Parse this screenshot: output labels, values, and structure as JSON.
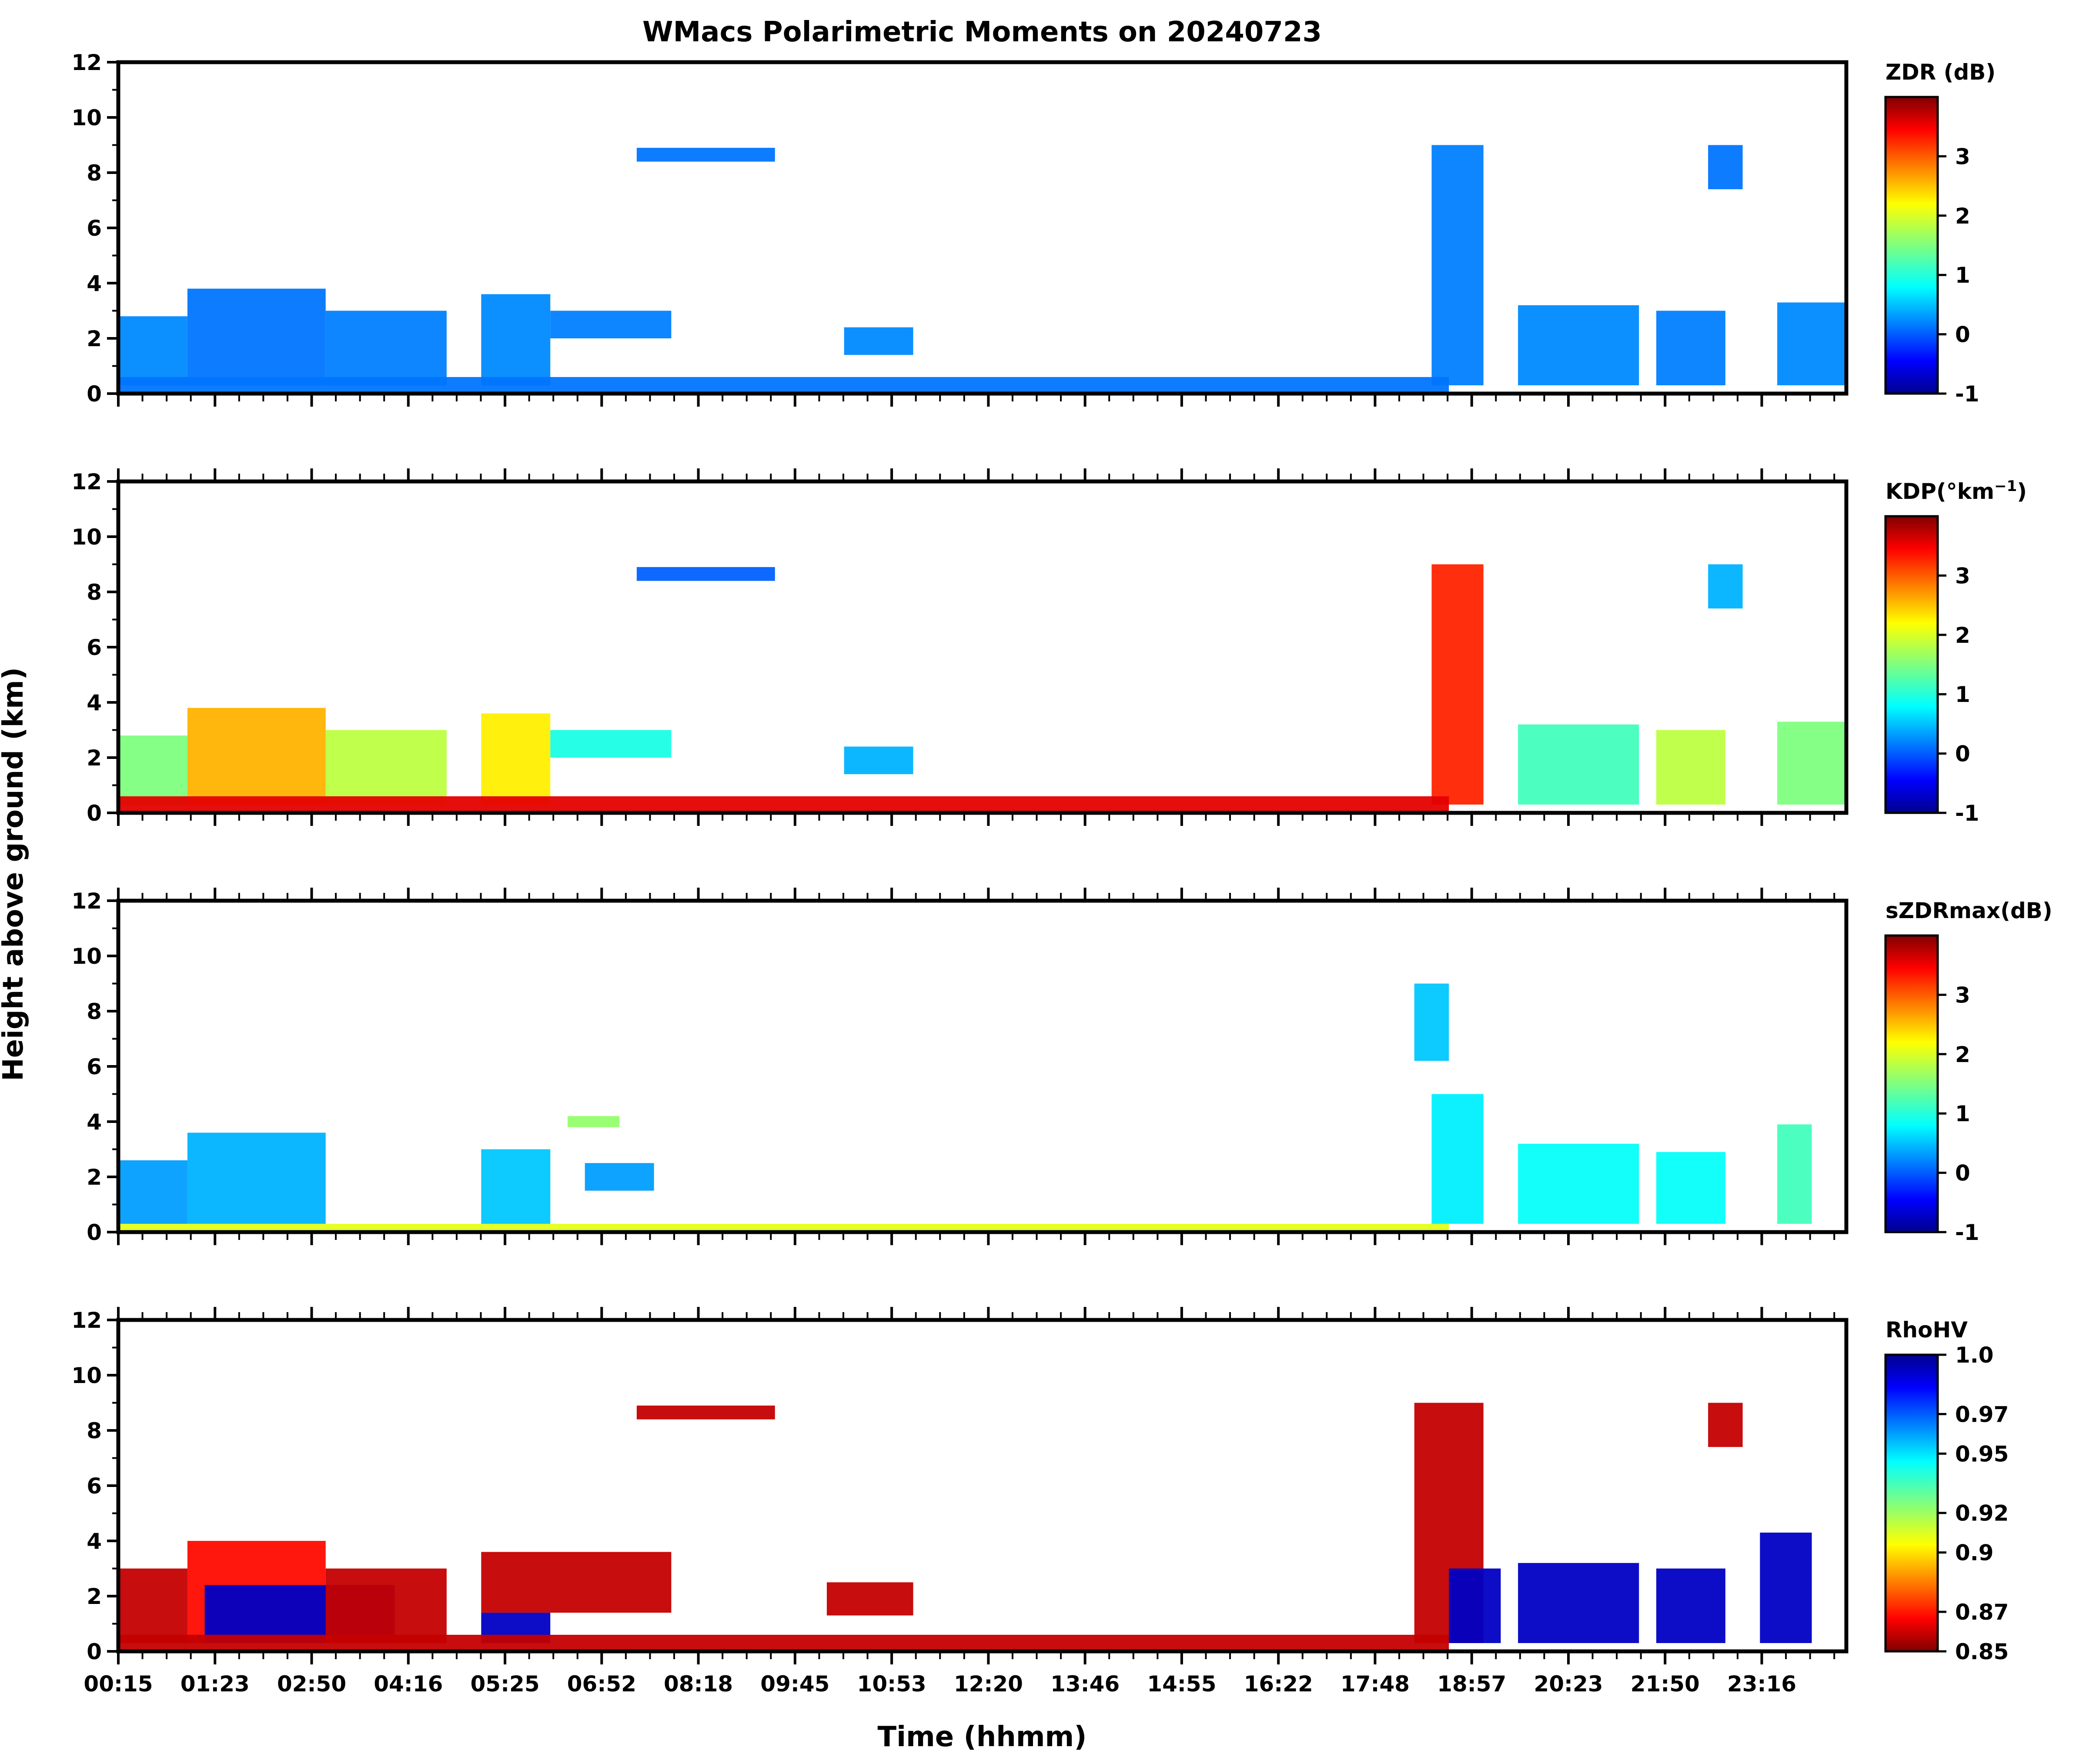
{
  "figure": {
    "title": "WMacs Polarimetric Moments on 20240723",
    "xlabel": "Time (hhmm)",
    "ylabel": "Height above ground (km)",
    "xtick_labels": [
      "00:15",
      "01:23",
      "02:50",
      "04:16",
      "05:25",
      "06:52",
      "08:18",
      "09:45",
      "10:53",
      "12:20",
      "13:46",
      "14:55",
      "16:22",
      "17:48",
      "18:57",
      "20:23",
      "21:50",
      "23:16"
    ]
  },
  "chart_data": [
    {
      "type": "heatmap",
      "id": "zdr",
      "colorbar_label": "ZDR (dB)",
      "clim": [
        -1,
        4
      ],
      "colorbar_ticks": [
        "-1",
        "0",
        "1",
        "2",
        "3"
      ],
      "colorbar_tick_values": [
        -1,
        0,
        1,
        2,
        3
      ],
      "ylim": [
        0,
        12
      ],
      "yticks": [
        0,
        2,
        4,
        6,
        8,
        10,
        12
      ],
      "dominant_value": 0.2,
      "echo_features": [
        {
          "t0": 0.0,
          "t1": 0.04,
          "h0": 0.3,
          "h1": 2.8,
          "v": 0.3
        },
        {
          "t0": 0.04,
          "t1": 0.12,
          "h0": 0.3,
          "h1": 3.8,
          "v": 0.2
        },
        {
          "t0": 0.12,
          "t1": 0.19,
          "h0": 0.3,
          "h1": 3.0,
          "v": 0.25
        },
        {
          "t0": 0.21,
          "t1": 0.25,
          "h0": 0.3,
          "h1": 3.6,
          "v": 0.3
        },
        {
          "t0": 0.25,
          "t1": 0.32,
          "h0": 2.0,
          "h1": 3.0,
          "v": 0.25
        },
        {
          "t0": 0.3,
          "t1": 0.38,
          "h0": 8.4,
          "h1": 8.9,
          "v": 0.2
        },
        {
          "t0": 0.42,
          "t1": 0.46,
          "h0": 1.4,
          "h1": 2.4,
          "v": 0.3
        },
        {
          "t0": 0.76,
          "t1": 0.79,
          "h0": 0.3,
          "h1": 9.0,
          "v": 0.25
        },
        {
          "t0": 0.81,
          "t1": 0.88,
          "h0": 0.3,
          "h1": 3.2,
          "v": 0.3
        },
        {
          "t0": 0.89,
          "t1": 0.93,
          "h0": 0.3,
          "h1": 3.0,
          "v": 0.25
        },
        {
          "t0": 0.92,
          "t1": 0.94,
          "h0": 7.4,
          "h1": 9.0,
          "v": 0.2
        },
        {
          "t0": 0.96,
          "t1": 1.0,
          "h0": 0.3,
          "h1": 3.3,
          "v": 0.3
        },
        {
          "t0": 0.0,
          "t1": 0.77,
          "h0": 0.05,
          "h1": 0.6,
          "v": 0.2
        }
      ]
    },
    {
      "type": "heatmap",
      "id": "kdp",
      "colorbar_label": "KDP(°km",
      "colorbar_label_sup": "−1",
      "colorbar_label_end": ")",
      "clim": [
        -1,
        4
      ],
      "colorbar_ticks": [
        "-1",
        "0",
        "1",
        "2",
        "3"
      ],
      "colorbar_tick_values": [
        -1,
        0,
        1,
        2,
        3
      ],
      "ylim": [
        0,
        12
      ],
      "yticks": [
        0,
        2,
        4,
        6,
        8,
        10,
        12
      ],
      "dominant_value": 0.1,
      "echo_features": [
        {
          "t0": 0.0,
          "t1": 0.04,
          "h0": 0.3,
          "h1": 2.8,
          "v": 1.5
        },
        {
          "t0": 0.04,
          "t1": 0.12,
          "h0": 0.3,
          "h1": 3.8,
          "v": 2.5
        },
        {
          "t0": 0.12,
          "t1": 0.19,
          "h0": 0.3,
          "h1": 3.0,
          "v": 1.8
        },
        {
          "t0": 0.21,
          "t1": 0.25,
          "h0": 0.3,
          "h1": 3.6,
          "v": 2.2
        },
        {
          "t0": 0.25,
          "t1": 0.32,
          "h0": 2.0,
          "h1": 3.0,
          "v": 1.0
        },
        {
          "t0": 0.3,
          "t1": 0.38,
          "h0": 8.4,
          "h1": 8.9,
          "v": 0.1
        },
        {
          "t0": 0.42,
          "t1": 0.46,
          "h0": 1.4,
          "h1": 2.4,
          "v": 0.5
        },
        {
          "t0": 0.76,
          "t1": 0.79,
          "h0": 0.3,
          "h1": 9.0,
          "v": 3.2
        },
        {
          "t0": 0.81,
          "t1": 0.88,
          "h0": 0.3,
          "h1": 3.2,
          "v": 1.2
        },
        {
          "t0": 0.89,
          "t1": 0.93,
          "h0": 0.3,
          "h1": 3.0,
          "v": 1.8
        },
        {
          "t0": 0.92,
          "t1": 0.94,
          "h0": 7.4,
          "h1": 9.0,
          "v": 0.5
        },
        {
          "t0": 0.96,
          "t1": 1.0,
          "h0": 0.3,
          "h1": 3.3,
          "v": 1.5
        },
        {
          "t0": 0.0,
          "t1": 0.77,
          "h0": 0.05,
          "h1": 0.6,
          "v": 3.5
        }
      ]
    },
    {
      "type": "heatmap",
      "id": "szdrmax",
      "colorbar_label": "sZDRmax(dB)",
      "clim": [
        -1,
        4
      ],
      "colorbar_ticks": [
        "-1",
        "0",
        "1",
        "2",
        "3"
      ],
      "colorbar_tick_values": [
        -1,
        0,
        1,
        2,
        3
      ],
      "ylim": [
        0,
        12
      ],
      "yticks": [
        0,
        2,
        4,
        6,
        8,
        10,
        12
      ],
      "dominant_value": 0.5,
      "echo_features": [
        {
          "t0": 0.0,
          "t1": 0.04,
          "h0": 0.3,
          "h1": 2.6,
          "v": 0.4
        },
        {
          "t0": 0.04,
          "t1": 0.12,
          "h0": 0.3,
          "h1": 3.6,
          "v": 0.5
        },
        {
          "t0": 0.21,
          "t1": 0.25,
          "h0": 0.3,
          "h1": 3.0,
          "v": 0.6
        },
        {
          "t0": 0.26,
          "t1": 0.29,
          "h0": 3.8,
          "h1": 4.2,
          "v": 1.6
        },
        {
          "t0": 0.27,
          "t1": 0.31,
          "h0": 1.5,
          "h1": 2.5,
          "v": 0.4
        },
        {
          "t0": 0.76,
          "t1": 0.79,
          "h0": 0.3,
          "h1": 5.0,
          "v": 0.8
        },
        {
          "t0": 0.75,
          "t1": 0.77,
          "h0": 6.2,
          "h1": 9.0,
          "v": 0.6
        },
        {
          "t0": 0.81,
          "t1": 0.88,
          "h0": 0.3,
          "h1": 3.2,
          "v": 0.9
        },
        {
          "t0": 0.89,
          "t1": 0.93,
          "h0": 0.3,
          "h1": 2.9,
          "v": 0.9
        },
        {
          "t0": 0.96,
          "t1": 0.98,
          "h0": 0.3,
          "h1": 3.9,
          "v": 1.2
        },
        {
          "t0": 0.0,
          "t1": 0.77,
          "h0": 0.05,
          "h1": 0.3,
          "v": 2.0
        }
      ]
    },
    {
      "type": "heatmap",
      "id": "rhohv",
      "colorbar_label": "RhoHV",
      "clim": [
        0.85,
        1.0
      ],
      "colorbar_ticks": [
        "1.0",
        "0.97",
        "0.95",
        "0.92",
        "0.9",
        "0.87",
        "0.85"
      ],
      "colorbar_tick_values": [
        1.0,
        0.97,
        0.95,
        0.92,
        0.9,
        0.87,
        0.85
      ],
      "colormap_reversed": true,
      "ylim": [
        0,
        12
      ],
      "yticks": [
        0,
        2,
        4,
        6,
        8,
        10,
        12
      ],
      "dominant_value": 0.86,
      "echo_features": [
        {
          "t0": 0.0,
          "t1": 0.04,
          "h0": 0.3,
          "h1": 3.0,
          "v": 0.86
        },
        {
          "t0": 0.04,
          "t1": 0.12,
          "h0": 0.3,
          "h1": 4.0,
          "v": 0.87
        },
        {
          "t0": 0.05,
          "t1": 0.16,
          "h0": 0.3,
          "h1": 2.4,
          "v": 0.99
        },
        {
          "t0": 0.12,
          "t1": 0.19,
          "h0": 0.3,
          "h1": 3.0,
          "v": 0.86
        },
        {
          "t0": 0.21,
          "t1": 0.25,
          "h0": 0.3,
          "h1": 1.4,
          "v": 0.99
        },
        {
          "t0": 0.21,
          "t1": 0.32,
          "h0": 1.4,
          "h1": 3.6,
          "v": 0.86
        },
        {
          "t0": 0.3,
          "t1": 0.38,
          "h0": 8.4,
          "h1": 8.9,
          "v": 0.86
        },
        {
          "t0": 0.41,
          "t1": 0.46,
          "h0": 1.3,
          "h1": 2.5,
          "v": 0.86
        },
        {
          "t0": 0.75,
          "t1": 0.79,
          "h0": 0.3,
          "h1": 9.0,
          "v": 0.86
        },
        {
          "t0": 0.77,
          "t1": 0.8,
          "h0": 0.3,
          "h1": 3.0,
          "v": 0.99
        },
        {
          "t0": 0.81,
          "t1": 0.88,
          "h0": 0.3,
          "h1": 3.2,
          "v": 0.99
        },
        {
          "t0": 0.89,
          "t1": 0.93,
          "h0": 0.3,
          "h1": 3.0,
          "v": 0.99
        },
        {
          "t0": 0.92,
          "t1": 0.94,
          "h0": 7.4,
          "h1": 9.0,
          "v": 0.86
        },
        {
          "t0": 0.95,
          "t1": 0.98,
          "h0": 0.3,
          "h1": 4.3,
          "v": 0.99
        },
        {
          "t0": 0.0,
          "t1": 0.77,
          "h0": 0.05,
          "h1": 0.6,
          "v": 0.86
        }
      ]
    }
  ]
}
